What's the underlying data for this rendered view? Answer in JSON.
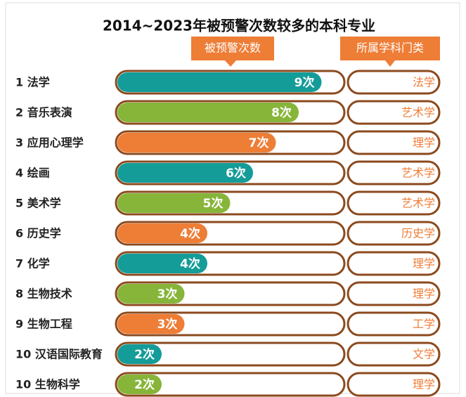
{
  "chart_data": {
    "type": "bar",
    "title": "2014~2023年被预警次数较多的本科专业",
    "value_header": "被预警次数",
    "category_header": "所属学科门类",
    "categories": [
      "1 法学",
      "2 音乐表演",
      "3 应用心理学",
      "4 绘画",
      "5 美术学",
      "6 历史学",
      "7 化学",
      "8 生物技术",
      "9 生物工程",
      "10 汉语国际教育",
      "10 生物科学"
    ],
    "values": [
      9,
      8,
      7,
      6,
      5,
      4,
      4,
      3,
      3,
      2,
      2
    ],
    "value_labels": [
      "9次",
      "8次",
      "7次",
      "6次",
      "5次",
      "4次",
      "4次",
      "3次",
      "3次",
      "2次",
      "2次"
    ],
    "disciplines": [
      "法学",
      "艺术学",
      "理学",
      "艺术学",
      "艺术学",
      "历史学",
      "理学",
      "理学",
      "工学",
      "文学",
      "理学"
    ],
    "colors": [
      "#149c98",
      "#86b53a",
      "#ee7d36",
      "#149c98",
      "#86b53a",
      "#ee7d36",
      "#149c98",
      "#86b53a",
      "#ee7d36",
      "#149c98",
      "#86b53a"
    ],
    "xlim": [
      0,
      10
    ]
  }
}
